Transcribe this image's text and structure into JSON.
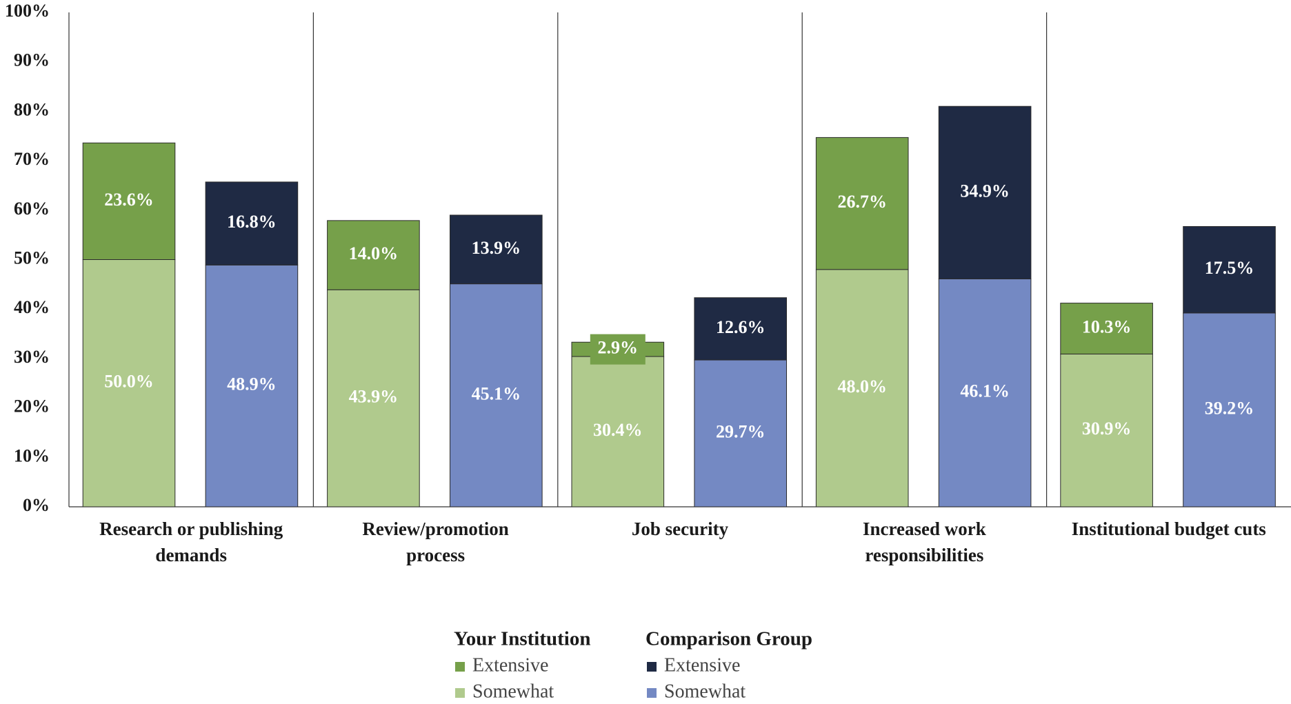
{
  "chart_data": {
    "type": "bar",
    "stacked": true,
    "categories": [
      [
        "Research or publishing",
        "demands"
      ],
      [
        "Review/promotion",
        "process"
      ],
      [
        "Job security"
      ],
      [
        "Increased work",
        "responsibilities"
      ],
      [
        "Institutional budget cuts"
      ]
    ],
    "groups": [
      {
        "name": "Your Institution",
        "series": [
          {
            "name": "Extensive",
            "color": "#76a04a",
            "values": [
              23.6,
              14.0,
              2.9,
              26.7,
              10.3
            ],
            "value_labels": [
              "23.6%",
              "14.0%",
              "2.9%",
              "26.7%",
              "10.3%"
            ]
          },
          {
            "name": "Somewhat",
            "color": "#b0ca8d",
            "values": [
              50.0,
              43.9,
              30.4,
              48.0,
              30.9
            ],
            "value_labels": [
              "50.0%",
              "43.9%",
              "30.4%",
              "48.0%",
              "30.9%"
            ]
          }
        ]
      },
      {
        "name": "Comparison Group",
        "series": [
          {
            "name": "Extensive",
            "color": "#1f2a44",
            "values": [
              16.8,
              13.9,
              12.6,
              34.9,
              17.5
            ],
            "value_labels": [
              "16.8%",
              "13.9%",
              "12.6%",
              "34.9%",
              "17.5%"
            ]
          },
          {
            "name": "Somewhat",
            "color": "#7489c3",
            "values": [
              48.9,
              45.1,
              29.7,
              46.1,
              39.2
            ],
            "value_labels": [
              "48.9%",
              "45.1%",
              "29.7%",
              "46.1%",
              "39.2%"
            ]
          }
        ]
      }
    ],
    "ylim": [
      0,
      100
    ],
    "yticks": [
      {
        "value": 0,
        "label": "0%"
      },
      {
        "value": 10,
        "label": "10%"
      },
      {
        "value": 20,
        "label": "20%"
      },
      {
        "value": 30,
        "label": "30%"
      },
      {
        "value": 40,
        "label": "40%"
      },
      {
        "value": 50,
        "label": "50%"
      },
      {
        "value": 60,
        "label": "60%"
      },
      {
        "value": 70,
        "label": "70%"
      },
      {
        "value": 80,
        "label": "80%"
      },
      {
        "value": 90,
        "label": "90%"
      },
      {
        "value": 100,
        "label": "100%"
      }
    ]
  }
}
